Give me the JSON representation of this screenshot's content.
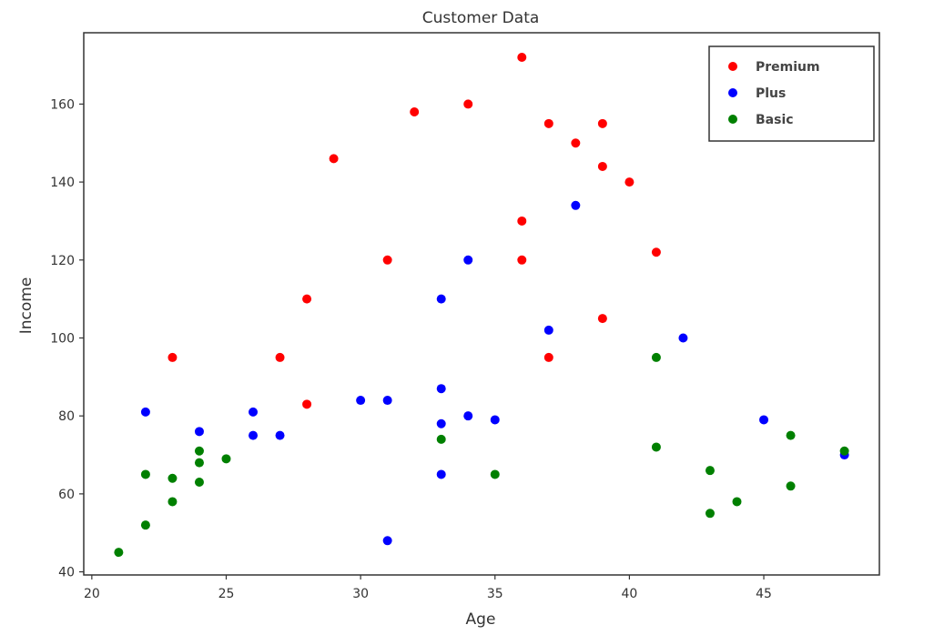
{
  "chart_data": {
    "type": "scatter",
    "title": "Customer Data",
    "xlabel": "Age",
    "ylabel": "Income",
    "xlim": [
      19.7,
      49.3
    ],
    "ylim": [
      39.2,
      178.3
    ],
    "xticks": [
      "20",
      "25",
      "30",
      "35",
      "40",
      "45"
    ],
    "yticks": [
      "40",
      "60",
      "80",
      "100",
      "120",
      "140",
      "160"
    ],
    "grid": false,
    "legend_position": "top-right",
    "series": [
      {
        "name": "Premium",
        "color": "#ff0000",
        "points": [
          [
            23,
            95
          ],
          [
            27,
            95
          ],
          [
            28,
            110
          ],
          [
            28,
            83
          ],
          [
            29,
            146
          ],
          [
            31,
            120
          ],
          [
            32,
            158
          ],
          [
            34,
            160
          ],
          [
            36,
            172
          ],
          [
            36,
            130
          ],
          [
            36,
            120
          ],
          [
            37,
            155
          ],
          [
            37,
            95
          ],
          [
            38,
            150
          ],
          [
            39,
            155
          ],
          [
            39,
            144
          ],
          [
            39,
            105
          ],
          [
            40,
            140
          ],
          [
            41,
            122
          ]
        ]
      },
      {
        "name": "Plus",
        "color": "#0000ff",
        "points": [
          [
            22,
            81
          ],
          [
            24,
            76
          ],
          [
            26,
            81
          ],
          [
            26,
            75
          ],
          [
            27,
            75
          ],
          [
            30,
            84
          ],
          [
            31,
            84
          ],
          [
            31,
            48
          ],
          [
            33,
            110
          ],
          [
            33,
            87
          ],
          [
            33,
            78
          ],
          [
            33,
            65
          ],
          [
            34,
            120
          ],
          [
            34,
            80
          ],
          [
            35,
            79
          ],
          [
            37,
            102
          ],
          [
            38,
            134
          ],
          [
            42,
            100
          ],
          [
            45,
            79
          ],
          [
            48,
            70
          ]
        ]
      },
      {
        "name": "Basic",
        "color": "#008000",
        "points": [
          [
            21,
            45
          ],
          [
            22,
            65
          ],
          [
            22,
            52
          ],
          [
            23,
            64
          ],
          [
            23,
            58
          ],
          [
            24,
            71
          ],
          [
            24,
            68
          ],
          [
            24,
            63
          ],
          [
            25,
            69
          ],
          [
            33,
            74
          ],
          [
            35,
            65
          ],
          [
            41,
            95
          ],
          [
            41,
            72
          ],
          [
            43,
            66
          ],
          [
            43,
            55
          ],
          [
            44,
            58
          ],
          [
            46,
            75
          ],
          [
            46,
            62
          ],
          [
            48,
            71
          ]
        ]
      }
    ]
  }
}
